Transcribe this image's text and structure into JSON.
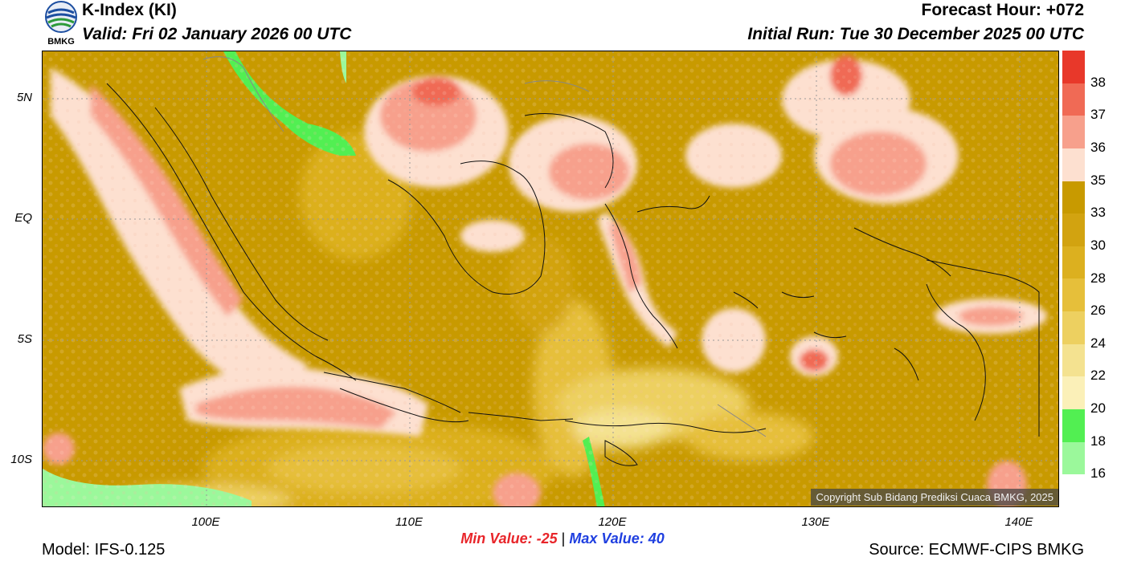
{
  "header": {
    "title": "K-Index (KI)",
    "valid": "Valid: Fri 02 January 2026 00 UTC",
    "forecast_hour": "Forecast Hour: +072",
    "initial_run": "Initial Run: Tue 30 December 2025 00 UTC",
    "logo_text": "BMKG"
  },
  "map": {
    "lat_labels": [
      "5N",
      "EQ",
      "5S",
      "10S"
    ],
    "lon_labels": [
      "100E",
      "110E",
      "120E",
      "130E",
      "140E"
    ],
    "copyright": "Copyright Sub Bidang Prediksi Cuaca BMKG, 2025"
  },
  "colorbar": {
    "ticks": [
      "38",
      "37",
      "36",
      "35",
      "33",
      "30",
      "28",
      "26",
      "24",
      "22",
      "20",
      "18",
      "16"
    ],
    "colors": [
      "#e8382a",
      "#f06a55",
      "#f7a08c",
      "#fde0d0",
      "#c89a00",
      "#d2a310",
      "#dcb01f",
      "#e6bf3a",
      "#edd060",
      "#f4e290",
      "#fbf0b8",
      "#52ef52",
      "#9bf89b",
      "#ffffff"
    ]
  },
  "footer": {
    "min_label": "Min Value: -25",
    "separator": "|",
    "max_label": "Max Value:  40",
    "model": "Model: IFS-0.125",
    "source": "Source: ECMWF-CIPS BMKG"
  }
}
